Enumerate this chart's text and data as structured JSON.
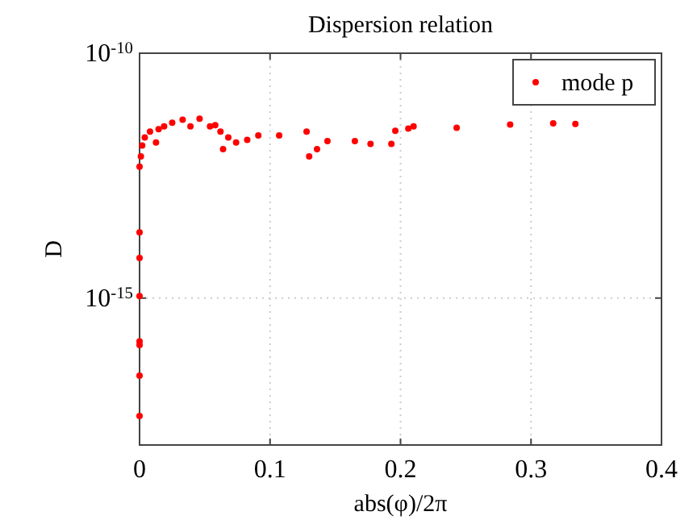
{
  "chart_data": {
    "type": "scatter",
    "title": "Dispersion relation",
    "xlabel": "abs(φ)/2π",
    "ylabel": "D",
    "log": "y",
    "xlim": [
      0,
      0.4
    ],
    "xticks": [
      0,
      0.1,
      0.2,
      0.3,
      0.4
    ],
    "ylim": [
      1e-18,
      1e-10
    ],
    "yticks": [
      {
        "value": 1e-10,
        "label": "10$^{-10}$"
      },
      {
        "value": 1e-15,
        "label": "10$^{-15}$"
      }
    ],
    "grid": true,
    "legend": "top right",
    "marker": "circle",
    "series": [
      {
        "name": "mode p",
        "color": "#ff0000",
        "x": [
          0,
          0,
          0,
          0,
          0,
          0,
          0,
          0,
          0.001,
          0.002,
          0.004,
          0.008,
          0.0126,
          0.0146,
          0.0188,
          0.025,
          0.033,
          0.039,
          0.046,
          0.054,
          0.058,
          0.062,
          0.064,
          0.068,
          0.074,
          0.0825,
          0.091,
          0.107,
          0.128,
          0.13,
          0.136,
          0.144,
          0.165,
          0.177,
          0.193,
          0.196,
          0.206,
          0.21,
          0.243,
          0.284,
          0.317,
          0.334
        ],
        "values": [
          3.9e-18,
          2.6e-17,
          1.1e-16,
          1.3e-16,
          1.1e-15,
          6.6e-15,
          2.2e-14,
          4.8e-13,
          7.8e-13,
          1.3e-12,
          1.9e-12,
          2.5e-12,
          1.5e-12,
          2.8e-12,
          3.2e-12,
          3.8e-12,
          4.4e-12,
          3.2e-12,
          4.6e-12,
          3.2e-12,
          3.4e-12,
          2.5e-12,
          1.1e-12,
          1.9e-12,
          1.5e-12,
          1.7e-12,
          2.1e-12,
          2.1e-12,
          2.5e-12,
          7.8e-13,
          1.1e-12,
          1.6e-12,
          1.6e-12,
          1.4e-12,
          1.4e-12,
          2.6e-12,
          2.9e-12,
          3.2e-12,
          3e-12,
          3.5e-12,
          3.7e-12,
          3.6e-12
        ]
      }
    ]
  }
}
